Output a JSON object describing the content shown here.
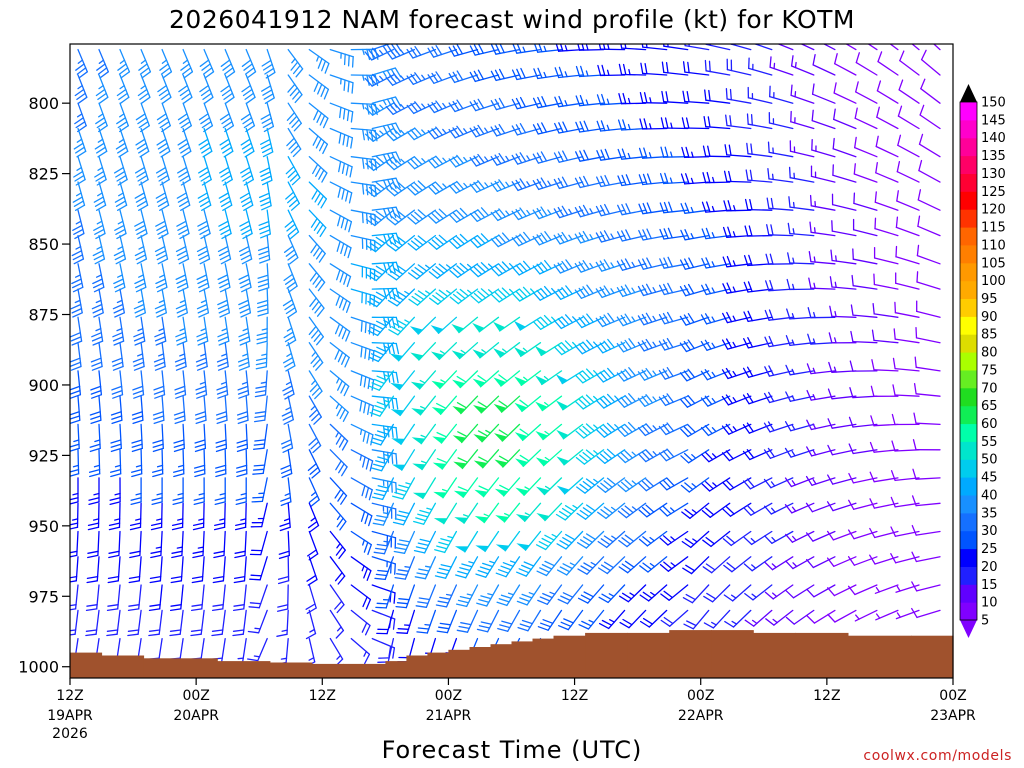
{
  "chart_data": {
    "type": "wind_barb_time_height",
    "title": "2026041912 NAM forecast wind profile (kt) for KOTM",
    "xlabel": "Forecast Time (UTC)",
    "ylabel": "",
    "y_axis": {
      "scale": "pressure (linear, inverted)",
      "range": [
        1004,
        779
      ],
      "ticks": [
        800,
        825,
        850,
        875,
        900,
        925,
        950,
        975,
        1000
      ]
    },
    "x_axis": {
      "range": [
        "2026-04-19T12Z",
        "2026-04-23T00Z"
      ],
      "ticks": [
        {
          "label": "12Z",
          "date": "19APR",
          "year": "2026"
        },
        {
          "label": "00Z",
          "date": "20APR",
          "year": ""
        },
        {
          "label": "12Z",
          "date": "",
          "year": ""
        },
        {
          "label": "00Z",
          "date": "21APR",
          "year": ""
        },
        {
          "label": "12Z",
          "date": "",
          "year": ""
        },
        {
          "label": "00Z",
          "date": "22APR",
          "year": ""
        },
        {
          "label": "12Z",
          "date": "",
          "year": ""
        },
        {
          "label": "00Z",
          "date": "23APR",
          "year": ""
        }
      ]
    },
    "barb_levels_hpa": [
      781,
      790,
      800,
      809,
      819,
      828,
      838,
      847,
      857,
      866,
      876,
      885,
      895,
      904,
      914,
      923,
      933,
      942,
      952,
      961,
      971,
      980,
      990
    ],
    "forecast_hours": [
      0,
      84
    ],
    "hours_per_column": 2,
    "terrain": {
      "color": "#a0522d",
      "step_hours": [
        0,
        3,
        7,
        14,
        19,
        23,
        26,
        30,
        32,
        34,
        36,
        38,
        40,
        42,
        44,
        46,
        49,
        53,
        57,
        61,
        65,
        69,
        74,
        80,
        84
      ],
      "surface_pressure_hpa": [
        995,
        996,
        997,
        998,
        998.5,
        999,
        999,
        998,
        996,
        995,
        994,
        993,
        992,
        991,
        990,
        989,
        988,
        988,
        987,
        987,
        988,
        988,
        989,
        989,
        988
      ]
    },
    "colorbar": {
      "label_values": [
        5,
        10,
        15,
        20,
        25,
        30,
        35,
        40,
        45,
        50,
        55,
        60,
        65,
        70,
        75,
        80,
        85,
        90,
        95,
        100,
        105,
        110,
        115,
        120,
        125,
        130,
        135,
        140,
        145,
        150
      ],
      "colors": [
        "#8000ff",
        "#6000ff",
        "#2020ff",
        "#0000ff",
        "#0055ff",
        "#1570ff",
        "#1890ff",
        "#00aaff",
        "#00ccee",
        "#00e5cc",
        "#00ffaa",
        "#10ee55",
        "#20dd20",
        "#66ee22",
        "#aaff00",
        "#dddd00",
        "#ffff00",
        "#ffcc00",
        "#ffaa00",
        "#ff9900",
        "#ff7f00",
        "#ff6600",
        "#ff3300",
        "#ff0000",
        "#ff0033",
        "#ff0066",
        "#ff0099",
        "#ff00cc",
        "#ff00ff",
        "#000000"
      ]
    }
  },
  "credit": "coolwx.com/models"
}
